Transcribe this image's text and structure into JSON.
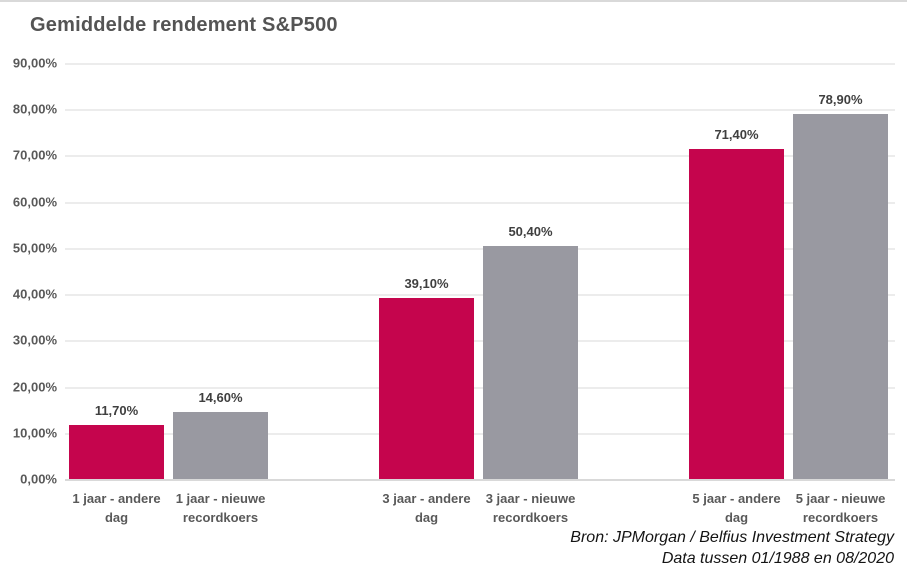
{
  "title": "Gemiddelde rendement S&P500",
  "source_lines": {
    "line1": "Bron: JPMorgan / Belfius Investment Strategy",
    "line2": "Data tussen 01/1988 en 08/2020"
  },
  "y_axis": {
    "tick_labels": [
      "90,00%",
      "80,00%",
      "70,00%",
      "60,00%",
      "50,00%",
      "40,00%",
      "30,00%",
      "20,00%",
      "10,00%",
      "0,00%"
    ]
  },
  "colors": {
    "bar_crimson": "#c5054d",
    "bar_gray": "#9999a1",
    "gridline": "#ececec",
    "baseline": "#d9d9d9",
    "title_text": "#545454",
    "axis_text": "#595959",
    "value_text": "#3f3f3f",
    "source_text": "#141414"
  },
  "chart_data": {
    "type": "bar",
    "title": "Gemiddelde rendement S&P500",
    "categories": [
      "1 jaar - andere dag",
      "1 jaar - nieuwe recordkoers",
      "3 jaar - andere dag",
      "3 jaar - nieuwe recordkoers",
      "5 jaar - andere dag",
      "5 jaar - nieuwe recordkoers"
    ],
    "category_lines": [
      [
        "1 jaar - andere",
        "dag"
      ],
      [
        "1 jaar - nieuwe",
        "recordkoers"
      ],
      [
        "3 jaar - andere",
        "dag"
      ],
      [
        "3 jaar - nieuwe",
        "recordkoers"
      ],
      [
        "5 jaar - andere",
        "dag"
      ],
      [
        "5 jaar - nieuwe",
        "recordkoers"
      ]
    ],
    "values": [
      11.7,
      14.6,
      39.1,
      50.4,
      71.4,
      78.9
    ],
    "value_labels": [
      "11,70%",
      "14,60%",
      "39,10%",
      "50,40%",
      "71,40%",
      "78,90%"
    ],
    "bar_color_keys": [
      "bar_crimson",
      "bar_gray",
      "bar_crimson",
      "bar_gray",
      "bar_crimson",
      "bar_gray"
    ],
    "groups": [
      [
        0,
        1
      ],
      [
        2,
        3
      ],
      [
        4,
        5
      ]
    ],
    "ylim": [
      0,
      90
    ],
    "y_step": 10,
    "xlabel": "",
    "ylabel": "",
    "grid": true,
    "legend": false
  }
}
